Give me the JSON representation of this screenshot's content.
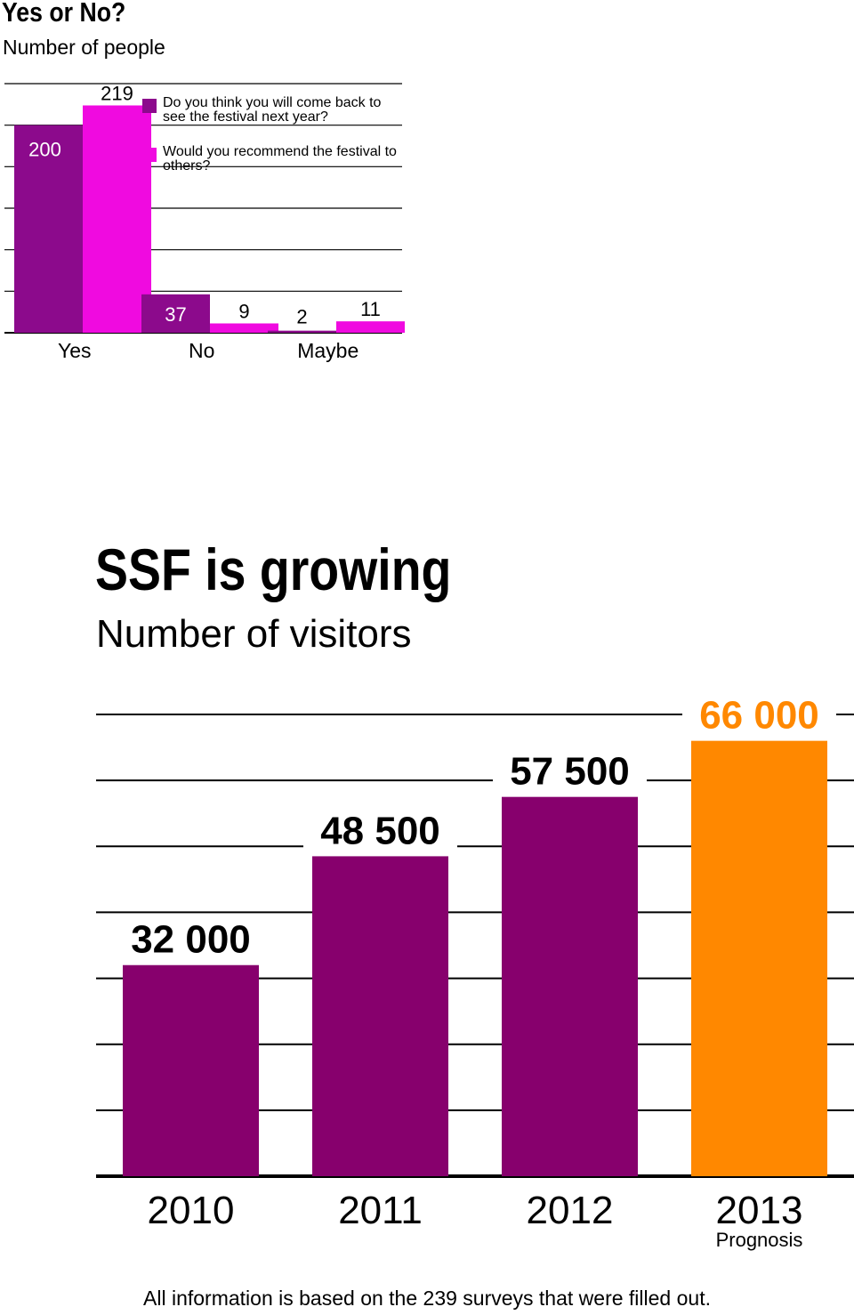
{
  "chart_data": [
    {
      "type": "bar",
      "title": "Yes or No?",
      "subtitle": "Number of people",
      "categories": [
        "Yes",
        "No",
        "Maybe"
      ],
      "series": [
        {
          "name": "Do you think you will come back to see the festival next year?",
          "values": [
            200,
            37,
            2
          ],
          "color": "#8c0a8c"
        },
        {
          "name": "Would you recommend the festival to others?",
          "values": [
            219,
            9,
            11
          ],
          "color": "#f00ae0"
        }
      ],
      "value_labels": [
        [
          "200",
          "37",
          "2"
        ],
        [
          "219",
          "9",
          "11"
        ]
      ],
      "ylim": [
        0,
        240
      ],
      "grid": true,
      "legend": "top-right"
    },
    {
      "type": "bar",
      "title": "SSF is growing",
      "subtitle": "Number of visitors",
      "categories": [
        "2010",
        "2011",
        "2012",
        "2013"
      ],
      "category_notes": [
        "",
        "",
        "",
        "Prognosis"
      ],
      "values": [
        32000,
        48500,
        57500,
        66000
      ],
      "value_labels": [
        "32 000",
        "48 500",
        "57 500",
        "66 000"
      ],
      "colors": [
        "#87006d",
        "#87006d",
        "#87006d",
        "#ff8800"
      ],
      "value_label_colors": [
        "#000000",
        "#000000",
        "#000000",
        "#ff8800"
      ],
      "ylim": [
        0,
        70000
      ],
      "grid": true
    }
  ],
  "footnote": "All information is based on the 239 surveys that were filled out."
}
